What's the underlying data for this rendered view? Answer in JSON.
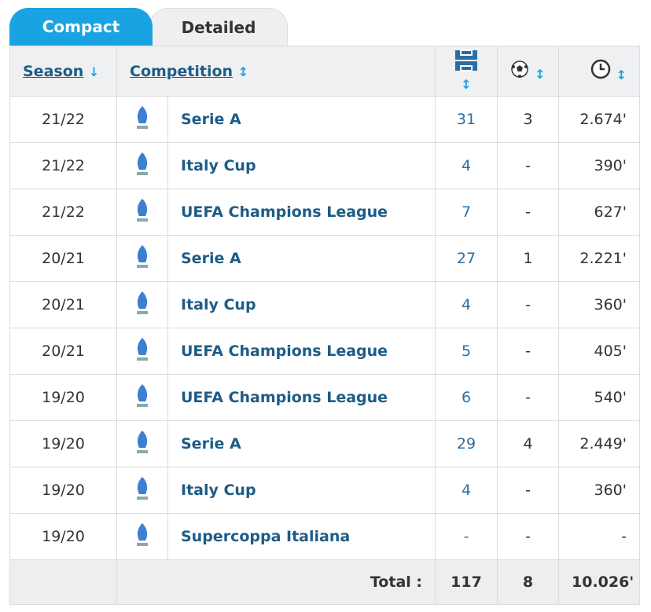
{
  "tabs": [
    "Compact",
    "Detailed"
  ],
  "header": {
    "season": "Season",
    "competition": "Competition"
  },
  "rows": [
    {
      "season": "21/22",
      "competition": "Serie A",
      "apps": 31,
      "goals": 3,
      "minutes": "2.674'"
    },
    {
      "season": "21/22",
      "competition": "Italy Cup",
      "apps": 4,
      "goals": "-",
      "minutes": "390'"
    },
    {
      "season": "21/22",
      "competition": "UEFA Champions League",
      "apps": 7,
      "goals": "-",
      "minutes": "627'"
    },
    {
      "season": "20/21",
      "competition": "Serie A",
      "apps": 27,
      "goals": 1,
      "minutes": "2.221'"
    },
    {
      "season": "20/21",
      "competition": "Italy Cup",
      "apps": 4,
      "goals": "-",
      "minutes": "360'"
    },
    {
      "season": "20/21",
      "competition": "UEFA Champions League",
      "apps": 5,
      "goals": "-",
      "minutes": "405'"
    },
    {
      "season": "19/20",
      "competition": "UEFA Champions League",
      "apps": 6,
      "goals": "-",
      "minutes": "540'"
    },
    {
      "season": "19/20",
      "competition": "Serie A",
      "apps": 29,
      "goals": 4,
      "minutes": "2.449'"
    },
    {
      "season": "19/20",
      "competition": "Italy Cup",
      "apps": 4,
      "goals": "-",
      "minutes": "360'"
    },
    {
      "season": "19/20",
      "competition": "Supercoppa Italiana",
      "apps": "-",
      "goals": "-",
      "minutes": "-"
    }
  ],
  "total": {
    "label": "Total :",
    "apps": 117,
    "goals": 8,
    "minutes": "10.026'"
  }
}
